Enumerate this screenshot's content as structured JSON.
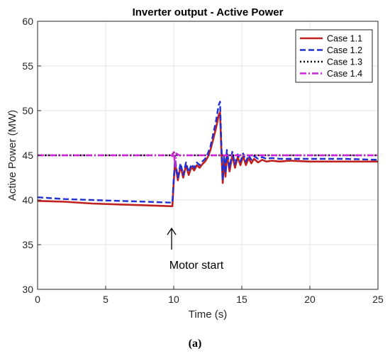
{
  "chart_data": {
    "type": "line",
    "title": "Inverter output - Active Power",
    "xlabel": "Time (s)",
    "ylabel": "Active Power (MW)",
    "xlim": [
      0,
      25
    ],
    "ylim": [
      30,
      60
    ],
    "xticks": [
      "0",
      "5",
      "10",
      "15",
      "20",
      "25"
    ],
    "yticks": [
      "30",
      "35",
      "40",
      "45",
      "50",
      "55",
      "60"
    ],
    "grid": true,
    "legend_position": "top-right",
    "annotation": "Motor start",
    "annotation_x": 10,
    "caption": "(a)",
    "series": [
      {
        "name": "Case 1.1",
        "color": "#c0201e",
        "style": "solid",
        "x": [
          0,
          2,
          4,
          6,
          8,
          9.9,
          10.0,
          10.1,
          10.3,
          10.5,
          10.7,
          10.9,
          11.1,
          11.3,
          11.5,
          11.7,
          11.9,
          12.1,
          12.3,
          12.5,
          12.7,
          12.9,
          13.1,
          13.3,
          13.4,
          13.5,
          13.6,
          13.7,
          13.8,
          13.9,
          14.1,
          14.3,
          14.5,
          14.7,
          14.9,
          15.1,
          15.3,
          15.5,
          15.7,
          15.9,
          16.2,
          16.5,
          16.8,
          17.2,
          17.8,
          18.5,
          20,
          22.5,
          25
        ],
        "y": [
          39.9,
          39.8,
          39.6,
          39.5,
          39.4,
          39.3,
          42.0,
          44.2,
          42.2,
          43.8,
          42.5,
          43.9,
          42.8,
          43.7,
          43.3,
          43.9,
          43.6,
          44.0,
          44.3,
          44.8,
          45.6,
          46.8,
          48.0,
          49.5,
          49.8,
          45.5,
          41.9,
          44.5,
          42.6,
          45.2,
          43.2,
          45.0,
          43.6,
          44.8,
          43.9,
          44.9,
          43.9,
          44.7,
          44.1,
          44.6,
          44.2,
          44.5,
          44.3,
          44.4,
          44.3,
          44.4,
          44.3,
          44.3,
          44.3
        ]
      },
      {
        "name": "Case 1.2",
        "color": "#1f2fd6",
        "style": "dashed",
        "x": [
          0,
          2,
          4,
          6,
          8,
          9.9,
          10.0,
          10.1,
          10.3,
          10.5,
          10.7,
          10.9,
          11.1,
          11.3,
          11.5,
          11.7,
          11.9,
          12.1,
          12.3,
          12.5,
          12.7,
          12.9,
          13.1,
          13.3,
          13.4,
          13.5,
          13.6,
          13.7,
          13.8,
          13.9,
          14.1,
          14.3,
          14.5,
          14.7,
          14.9,
          15.1,
          15.3,
          15.5,
          15.7,
          15.9,
          16.2,
          16.5,
          16.8,
          17.2,
          17.8,
          18.5,
          20,
          22.5,
          25
        ],
        "y": [
          40.3,
          40.1,
          40.0,
          39.9,
          39.8,
          39.7,
          42.4,
          44.5,
          42.5,
          44.1,
          42.8,
          44.2,
          43.1,
          44.0,
          43.6,
          44.2,
          43.9,
          44.3,
          44.6,
          45.2,
          46.0,
          47.4,
          48.8,
          50.6,
          51.0,
          46.2,
          42.2,
          45.0,
          43.0,
          45.6,
          43.6,
          45.4,
          44.0,
          45.1,
          44.3,
          45.2,
          44.3,
          45.0,
          44.5,
          44.9,
          44.6,
          44.8,
          44.6,
          44.7,
          44.6,
          44.6,
          44.6,
          44.6,
          44.5
        ]
      },
      {
        "name": "Case 1.3",
        "color": "#000000",
        "style": "dotted",
        "x": [
          0,
          9.8,
          9.9,
          10.0,
          10.1,
          10.2,
          25
        ],
        "y": [
          45.0,
          45.0,
          45.1,
          45.4,
          44.8,
          45.0,
          45.0
        ]
      },
      {
        "name": "Case 1.4",
        "color": "#cc22d8",
        "style": "dashdot",
        "x": [
          0,
          9.8,
          9.9,
          10.0,
          10.1,
          10.2,
          10.4,
          25
        ],
        "y": [
          45.0,
          45.0,
          44.9,
          45.5,
          43.7,
          45.2,
          45.0,
          45.0
        ]
      }
    ]
  }
}
